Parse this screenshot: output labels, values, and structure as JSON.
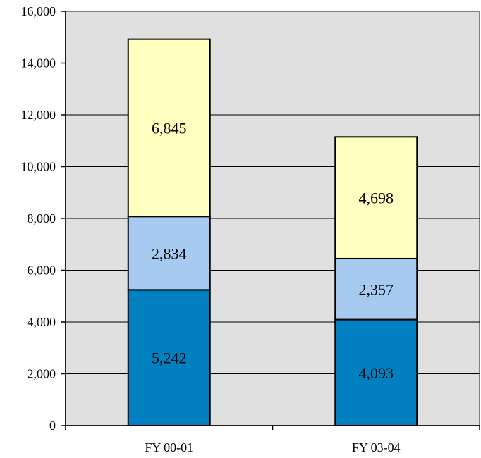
{
  "chart_data": {
    "type": "bar",
    "stacked": true,
    "title": "",
    "xlabel": "",
    "ylabel": "",
    "categories": [
      "FY 00-01",
      "FY 03-04"
    ],
    "series": [
      {
        "values": [
          5242,
          4093
        ],
        "labels": [
          "5,242",
          "4,093"
        ],
        "color": "#0080C0"
      },
      {
        "values": [
          2834,
          2357
        ],
        "labels": [
          "2,834",
          "2,357"
        ],
        "color": "#A6CAF0"
      },
      {
        "values": [
          6845,
          4698
        ],
        "labels": [
          "6,845",
          "4,698"
        ],
        "color": "#FFFFC0"
      }
    ],
    "ylim": [
      0,
      16000
    ],
    "yticks": [
      0,
      2000,
      4000,
      6000,
      8000,
      10000,
      12000,
      14000,
      16000
    ],
    "ytick_labels": [
      "0",
      "2,000",
      "4,000",
      "6,000",
      "8,000",
      "10,000",
      "12,000",
      "14,000",
      "16,000"
    ],
    "grid": true,
    "legend": "none",
    "plot_background": "#E0E0E0",
    "border_color": "#808080"
  }
}
